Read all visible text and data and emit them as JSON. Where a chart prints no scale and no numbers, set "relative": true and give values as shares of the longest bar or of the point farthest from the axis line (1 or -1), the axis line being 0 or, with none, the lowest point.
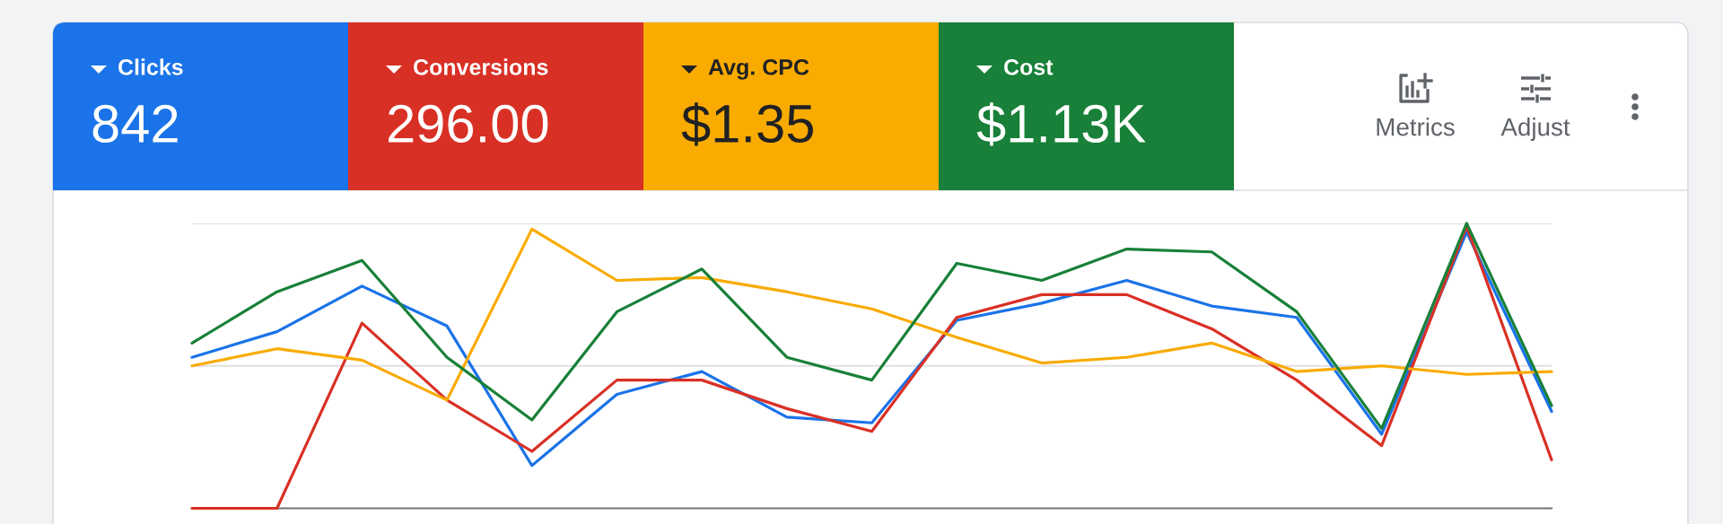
{
  "chart_data": [
    {
      "type": "other",
      "categories": [
        "Clicks",
        "Conversions",
        "Avg. CPC",
        "Cost"
      ],
      "value_labels": [
        "842",
        "296.00",
        "$1.35",
        "$1.13K"
      ],
      "colors": [
        "#1a73e8",
        "#d93025",
        "#f9ab00",
        "#188038"
      ],
      "annotations": [
        "Metrics",
        "Adjust"
      ]
    },
    {
      "type": "line",
      "relative": true,
      "categories": [
        null,
        null,
        null,
        null,
        null,
        null,
        null,
        null,
        null,
        null,
        null,
        null,
        null,
        null,
        null,
        null,
        null
      ],
      "ref_lines": [
        {
          "axis": "y",
          "value": 0.5,
          "color": "#e0e0e0"
        },
        {
          "axis": "y",
          "value": 1,
          "color": "#e0e0e0"
        }
      ],
      "series": [
        {
          "color": "#1a73e8",
          "values": [
            0.53,
            0.62,
            0.78,
            0.64,
            0.15,
            0.4,
            0.48,
            0.32,
            0.3,
            0.66,
            0.72,
            0.8,
            0.71,
            0.67,
            0.26,
            0.97,
            0.34
          ]
        },
        {
          "color": "#d93025",
          "values": [
            0,
            0,
            0.65,
            0.38,
            0.2,
            0.45,
            0.45,
            0.35,
            0.27,
            0.67,
            0.75,
            0.75,
            0.63,
            0.45,
            0.22,
            0.99,
            0.17
          ]
        },
        {
          "color": "#f9ab00",
          "values": [
            0.5,
            0.56,
            0.52,
            0.38,
            0.98,
            0.8,
            0.81,
            0.76,
            0.7,
            0.6,
            0.51,
            0.53,
            0.58,
            0.48,
            0.5,
            0.47,
            0.48
          ]
        },
        {
          "color": "#188038",
          "values": [
            0.58,
            0.76,
            0.87,
            0.53,
            0.31,
            0.69,
            0.84,
            0.53,
            0.45,
            0.86,
            0.8,
            0.91,
            0.9,
            0.69,
            0.28,
            1.0,
            0.36
          ]
        }
      ]
    }
  ]
}
